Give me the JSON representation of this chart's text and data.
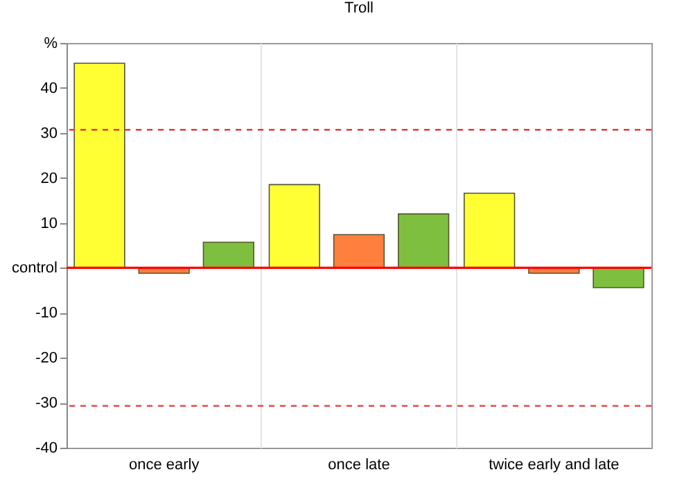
{
  "chart_data": {
    "type": "bar",
    "title": "Troll",
    "categories": [
      "once early",
      "once late",
      "twice early and late"
    ],
    "series": [
      {
        "color": "#ffff33",
        "values": [
          45.5,
          18.5,
          16.6
        ]
      },
      {
        "color": "#ff7f3f",
        "values": [
          -1.2,
          7.4,
          -1.2
        ]
      },
      {
        "color": "#7fbf3f",
        "values": [
          5.7,
          12,
          -4.4
        ]
      }
    ],
    "ylim": [
      -40,
      50
    ],
    "yticks": [
      {
        "value": 50,
        "label": "%"
      },
      40,
      30,
      20,
      10,
      {
        "value": 0,
        "label": "control"
      },
      -10,
      -20,
      -30,
      -40
    ],
    "ref_lines": [
      {
        "axis": "y",
        "value": 0,
        "color": "#ff0000",
        "line_style": "solid"
      },
      {
        "axis": "y",
        "value": 30.7,
        "color": "#ee3333",
        "line_style": "dashed"
      },
      {
        "axis": "y",
        "value": -30.7,
        "color": "#ee3333",
        "line_style": "dashed"
      }
    ],
    "grid": "x",
    "legend": false
  }
}
